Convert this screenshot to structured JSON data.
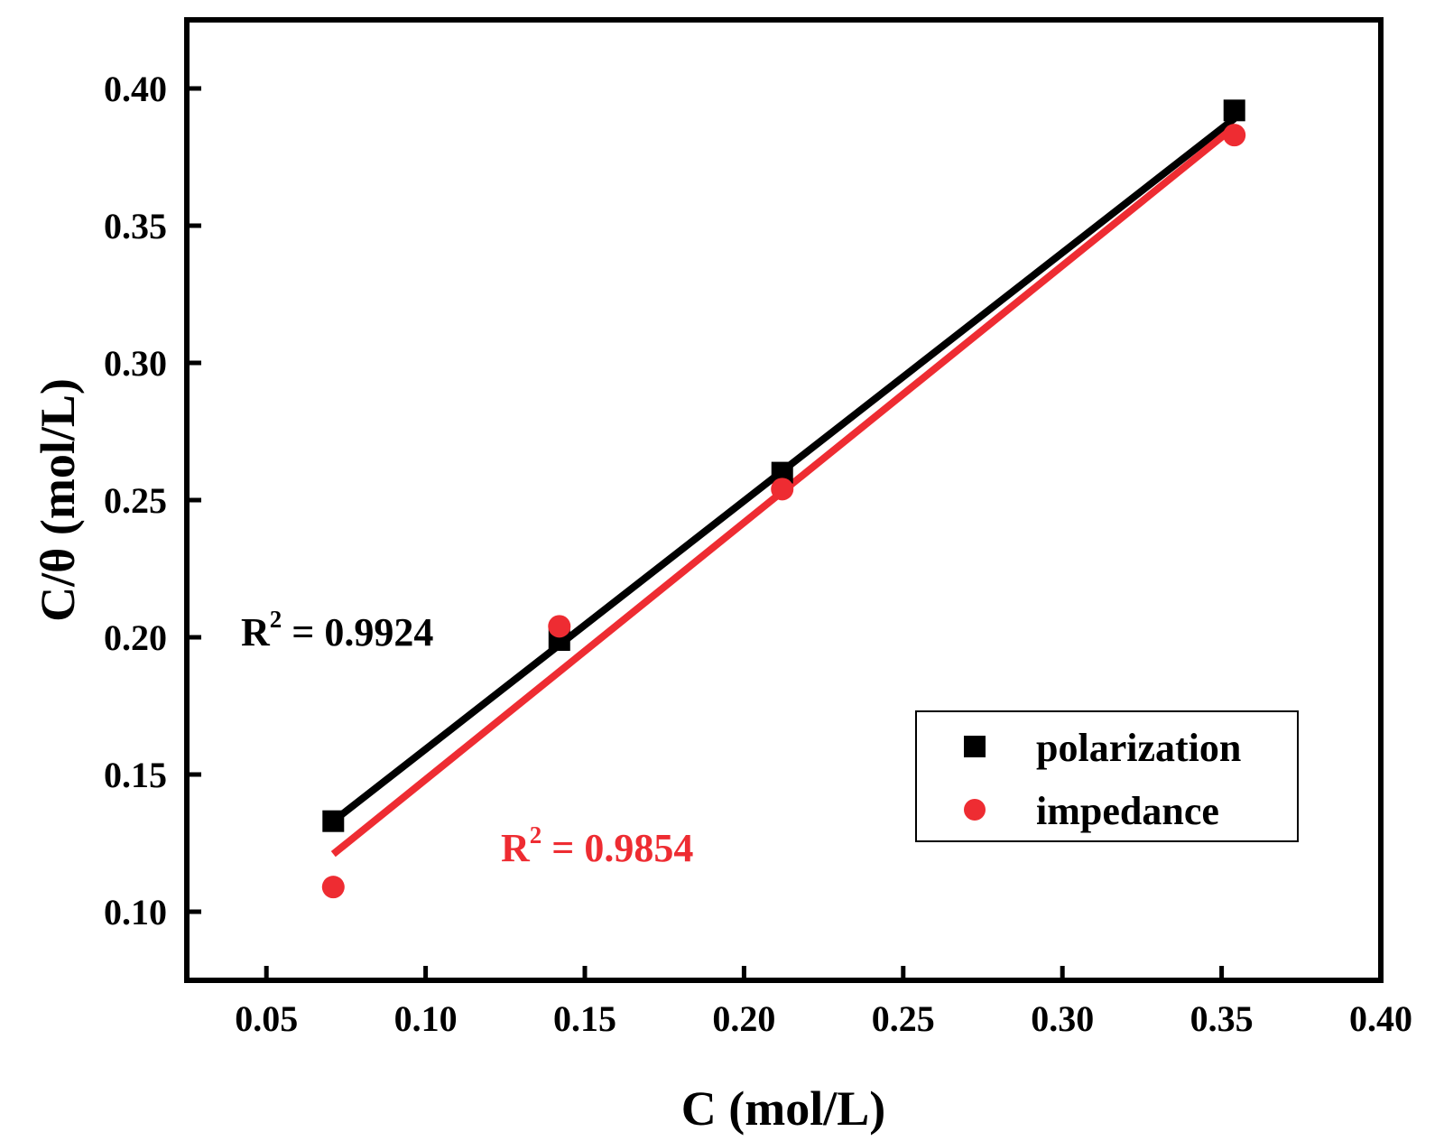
{
  "chart_data": {
    "type": "scatter",
    "xlabel": "C (mol/L)",
    "ylabel": "C/θ (mol/L)",
    "xlim": [
      0.025,
      0.4
    ],
    "ylim": [
      0.075,
      0.425
    ],
    "xticks": [
      "0.05",
      "0.10",
      "0.15",
      "0.20",
      "0.25",
      "0.30",
      "0.35",
      "0.40"
    ],
    "yticks": [
      "0.10",
      "0.15",
      "0.20",
      "0.25",
      "0.30",
      "0.35",
      "0.40"
    ],
    "grid": false,
    "legend": "bottom-right",
    "series": [
      {
        "name": "polarization",
        "marker": "square",
        "color": "#000000",
        "x": [
          0.071,
          0.142,
          0.212,
          0.354
        ],
        "y": [
          0.133,
          0.199,
          0.26,
          0.392
        ],
        "fit": {
          "x": [
            0.071,
            0.354
          ],
          "y": [
            0.133,
            0.389
          ]
        },
        "r2_label": "R",
        "r2_sup": "2",
        "r2_value": " = 0.9924"
      },
      {
        "name": "impedance",
        "marker": "circle",
        "color": "#ee2c32",
        "x": [
          0.071,
          0.142,
          0.212,
          0.354
        ],
        "y": [
          0.109,
          0.204,
          0.254,
          0.383
        ],
        "fit": {
          "x": [
            0.071,
            0.354
          ],
          "y": [
            0.121,
            0.386
          ]
        },
        "r2_label": "R",
        "r2_sup": "2",
        "r2_value": " = 0.9854"
      }
    ]
  }
}
